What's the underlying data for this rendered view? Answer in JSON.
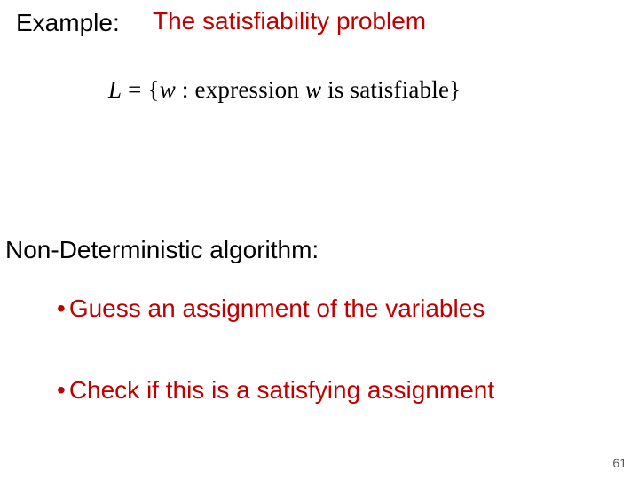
{
  "colors": {
    "text_black": "#000000",
    "text_red": "#c00000",
    "page_number": "#5a5a5a",
    "background": "#ffffff"
  },
  "fonts": {
    "body_family": "Comic Sans MS",
    "formula_family": "Times New Roman",
    "pagenum_family": "Arial",
    "body_size_pt": 21,
    "formula_size_pt": 20,
    "pagenum_size_pt": 10
  },
  "header": {
    "example_label": "Example:",
    "title": "The satisfiability problem"
  },
  "formula": {
    "prefix_var": "L",
    "eq": " = {",
    "w1": "w",
    "sep": " : expression ",
    "w2": "w",
    "tail": " is satisfiable}"
  },
  "subheading": "Non-Deterministic algorithm:",
  "bullets": [
    "Guess an assignment of the variables",
    "Check if this is a satisfying assignment"
  ],
  "bullet_char": "•",
  "page_number": "61"
}
